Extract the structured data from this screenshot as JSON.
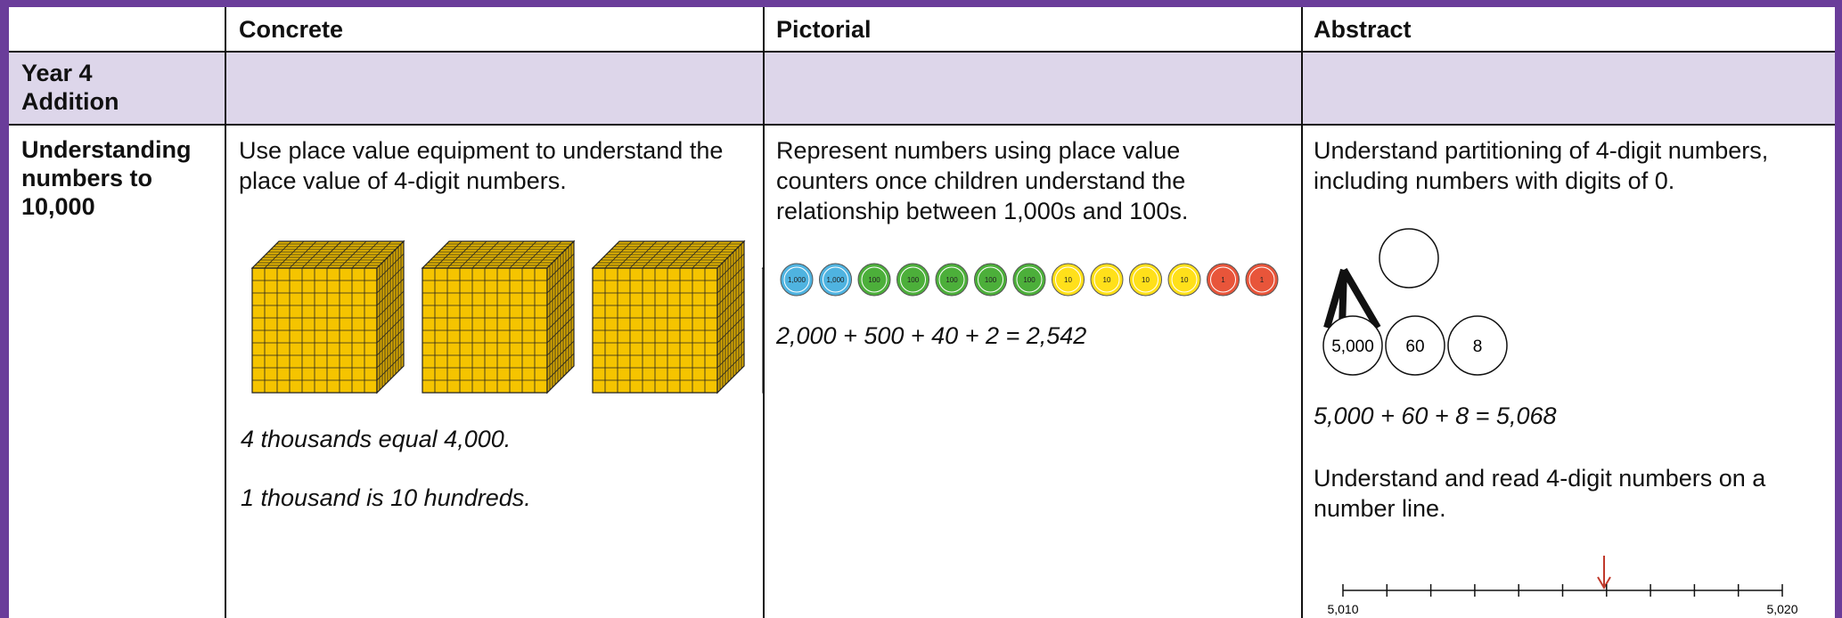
{
  "table": {
    "header": [
      "Concrete",
      "Pictorial",
      "Abstract"
    ],
    "section": "Year 4 Addition",
    "row": {
      "heading": "Understanding numbers to 10,000",
      "concrete": {
        "text": "Use place value equipment to understand the place value of 4-digit numbers.",
        "captions": [
          "4 thousands equal 4,000.",
          "1 thousand is 10 hundreds."
        ]
      },
      "pictorial": {
        "text": "Represent numbers using place value counters once children understand the relationship between 1,000s and 100s.",
        "counters": [
          {
            "label": "1,000",
            "color": "#4fb3e0"
          },
          {
            "label": "1,000",
            "color": "#4fb3e0"
          },
          {
            "label": "100",
            "color": "#4caf3a"
          },
          {
            "label": "100",
            "color": "#4caf3a"
          },
          {
            "label": "100",
            "color": "#4caf3a"
          },
          {
            "label": "100",
            "color": "#4caf3a"
          },
          {
            "label": "100",
            "color": "#4caf3a"
          },
          {
            "label": "10",
            "color": "#ffe01a"
          },
          {
            "label": "10",
            "color": "#ffe01a"
          },
          {
            "label": "10",
            "color": "#ffe01a"
          },
          {
            "label": "10",
            "color": "#ffe01a"
          },
          {
            "label": "1",
            "color": "#e8553a"
          },
          {
            "label": "1",
            "color": "#e8553a"
          }
        ],
        "equation": "2,000 + 500 + 40 + 2 = 2,542"
      },
      "abstract": {
        "text": "Understand partitioning of 4-digit numbers, including numbers with digits of 0.",
        "parts": [
          "5,000",
          "60",
          "8"
        ],
        "equation": "5,000 + 60 + 8 = 5,068",
        "text2": "Understand and read 4-digit numbers on a number line.",
        "number_line": [
          "5,010",
          "5,020"
        ]
      }
    }
  }
}
